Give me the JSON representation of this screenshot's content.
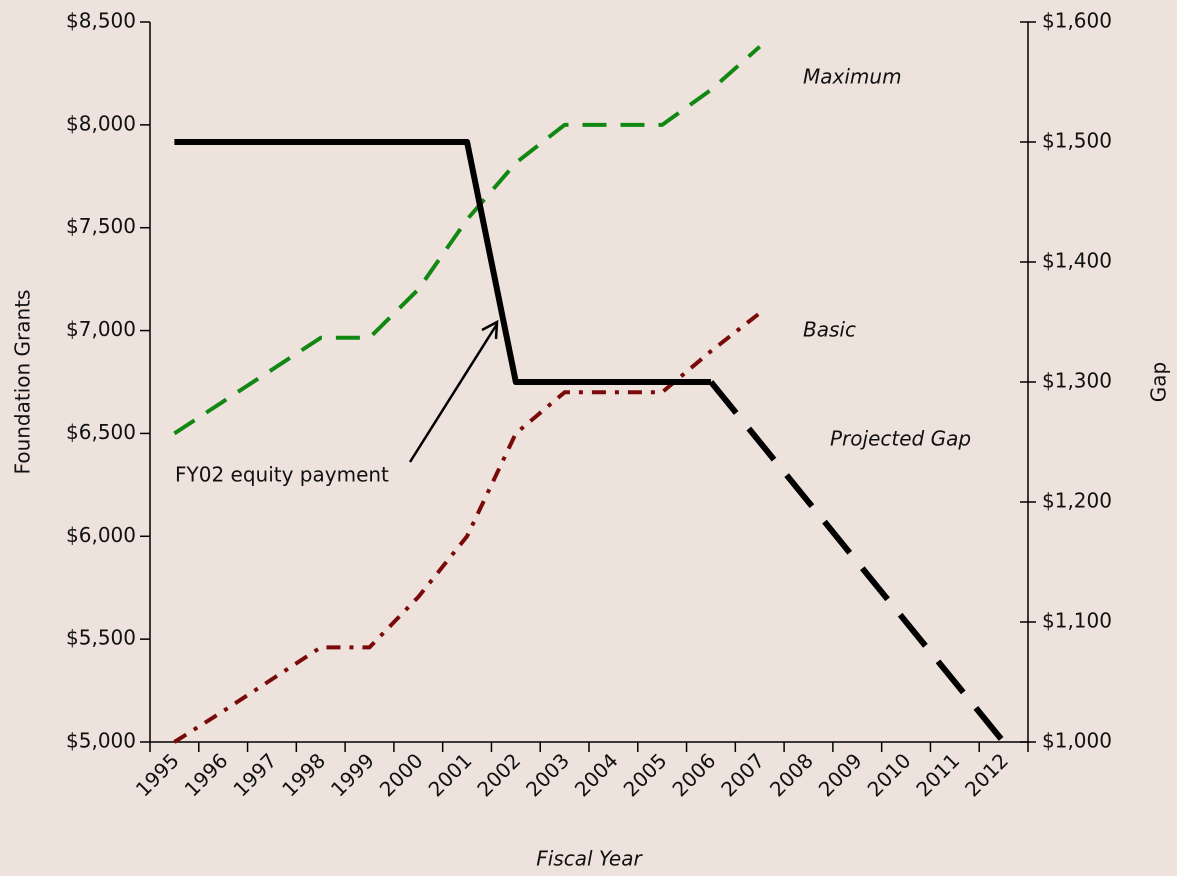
{
  "chart_data": {
    "type": "line",
    "x_label": "Fiscal Year",
    "y_label": "Foundation Grants",
    "y2_label": "Gap",
    "annotation": "FY02 equity payment",
    "categories": [
      "1995",
      "1996",
      "1997",
      "1998",
      "1999",
      "2000",
      "2001",
      "2002",
      "2003",
      "2004",
      "2005",
      "2006",
      "2007",
      "2008",
      "2009",
      "2010",
      "2011",
      "2012"
    ],
    "ylim": [
      5000,
      8500
    ],
    "yticks": [
      {
        "value": 5000,
        "label": "$5,000"
      },
      {
        "value": 5500,
        "label": "$5,500"
      },
      {
        "value": 6000,
        "label": "$6,000"
      },
      {
        "value": 6500,
        "label": "$6,500"
      },
      {
        "value": 7000,
        "label": "$7,000"
      },
      {
        "value": 7500,
        "label": "$7,500"
      },
      {
        "value": 8000,
        "label": "$8,000"
      },
      {
        "value": 8500,
        "label": "$8,500"
      }
    ],
    "y2lim": [
      1000,
      1600
    ],
    "y2ticks": [
      {
        "value": 1000,
        "label": "$1,000"
      },
      {
        "value": 1100,
        "label": "$1,100"
      },
      {
        "value": 1200,
        "label": "$1,200"
      },
      {
        "value": 1300,
        "label": "$1,300"
      },
      {
        "value": 1400,
        "label": "$1,400"
      },
      {
        "value": 1500,
        "label": "$1,500"
      },
      {
        "value": 1600,
        "label": "$1,600"
      }
    ],
    "series": [
      {
        "name": "Maximum",
        "color": "#118811",
        "linestyle": "dashed",
        "values": [
          6500,
          6655,
          6810,
          6965,
          6965,
          7200,
          7540,
          7815,
          8000,
          8000,
          8000,
          8170,
          8380,
          null,
          null,
          null,
          null,
          null
        ]
      },
      {
        "name": "Basic",
        "color": "#7a0a0a",
        "linestyle": "dashdot",
        "values": [
          5000,
          5150,
          5305,
          5460,
          5460,
          5705,
          6000,
          6500,
          6700,
          6700,
          6700,
          6900,
          7085,
          null,
          null,
          null,
          null,
          null
        ]
      },
      {
        "color": "#000000",
        "linestyle": "solid",
        "axis": "y2",
        "values": [
          1500,
          1500,
          1500,
          1500,
          1500,
          1500,
          1500,
          1300,
          1300,
          1300,
          1300,
          1300,
          null,
          null,
          null,
          null,
          null,
          null
        ]
      },
      {
        "name": "Projected Gap",
        "color": "#000000",
        "linestyle": "dashed",
        "axis": "y2",
        "values": [
          null,
          null,
          null,
          null,
          null,
          null,
          null,
          null,
          null,
          null,
          null,
          1300,
          1250,
          1200,
          1150,
          1100,
          1050,
          1000
        ]
      }
    ]
  }
}
